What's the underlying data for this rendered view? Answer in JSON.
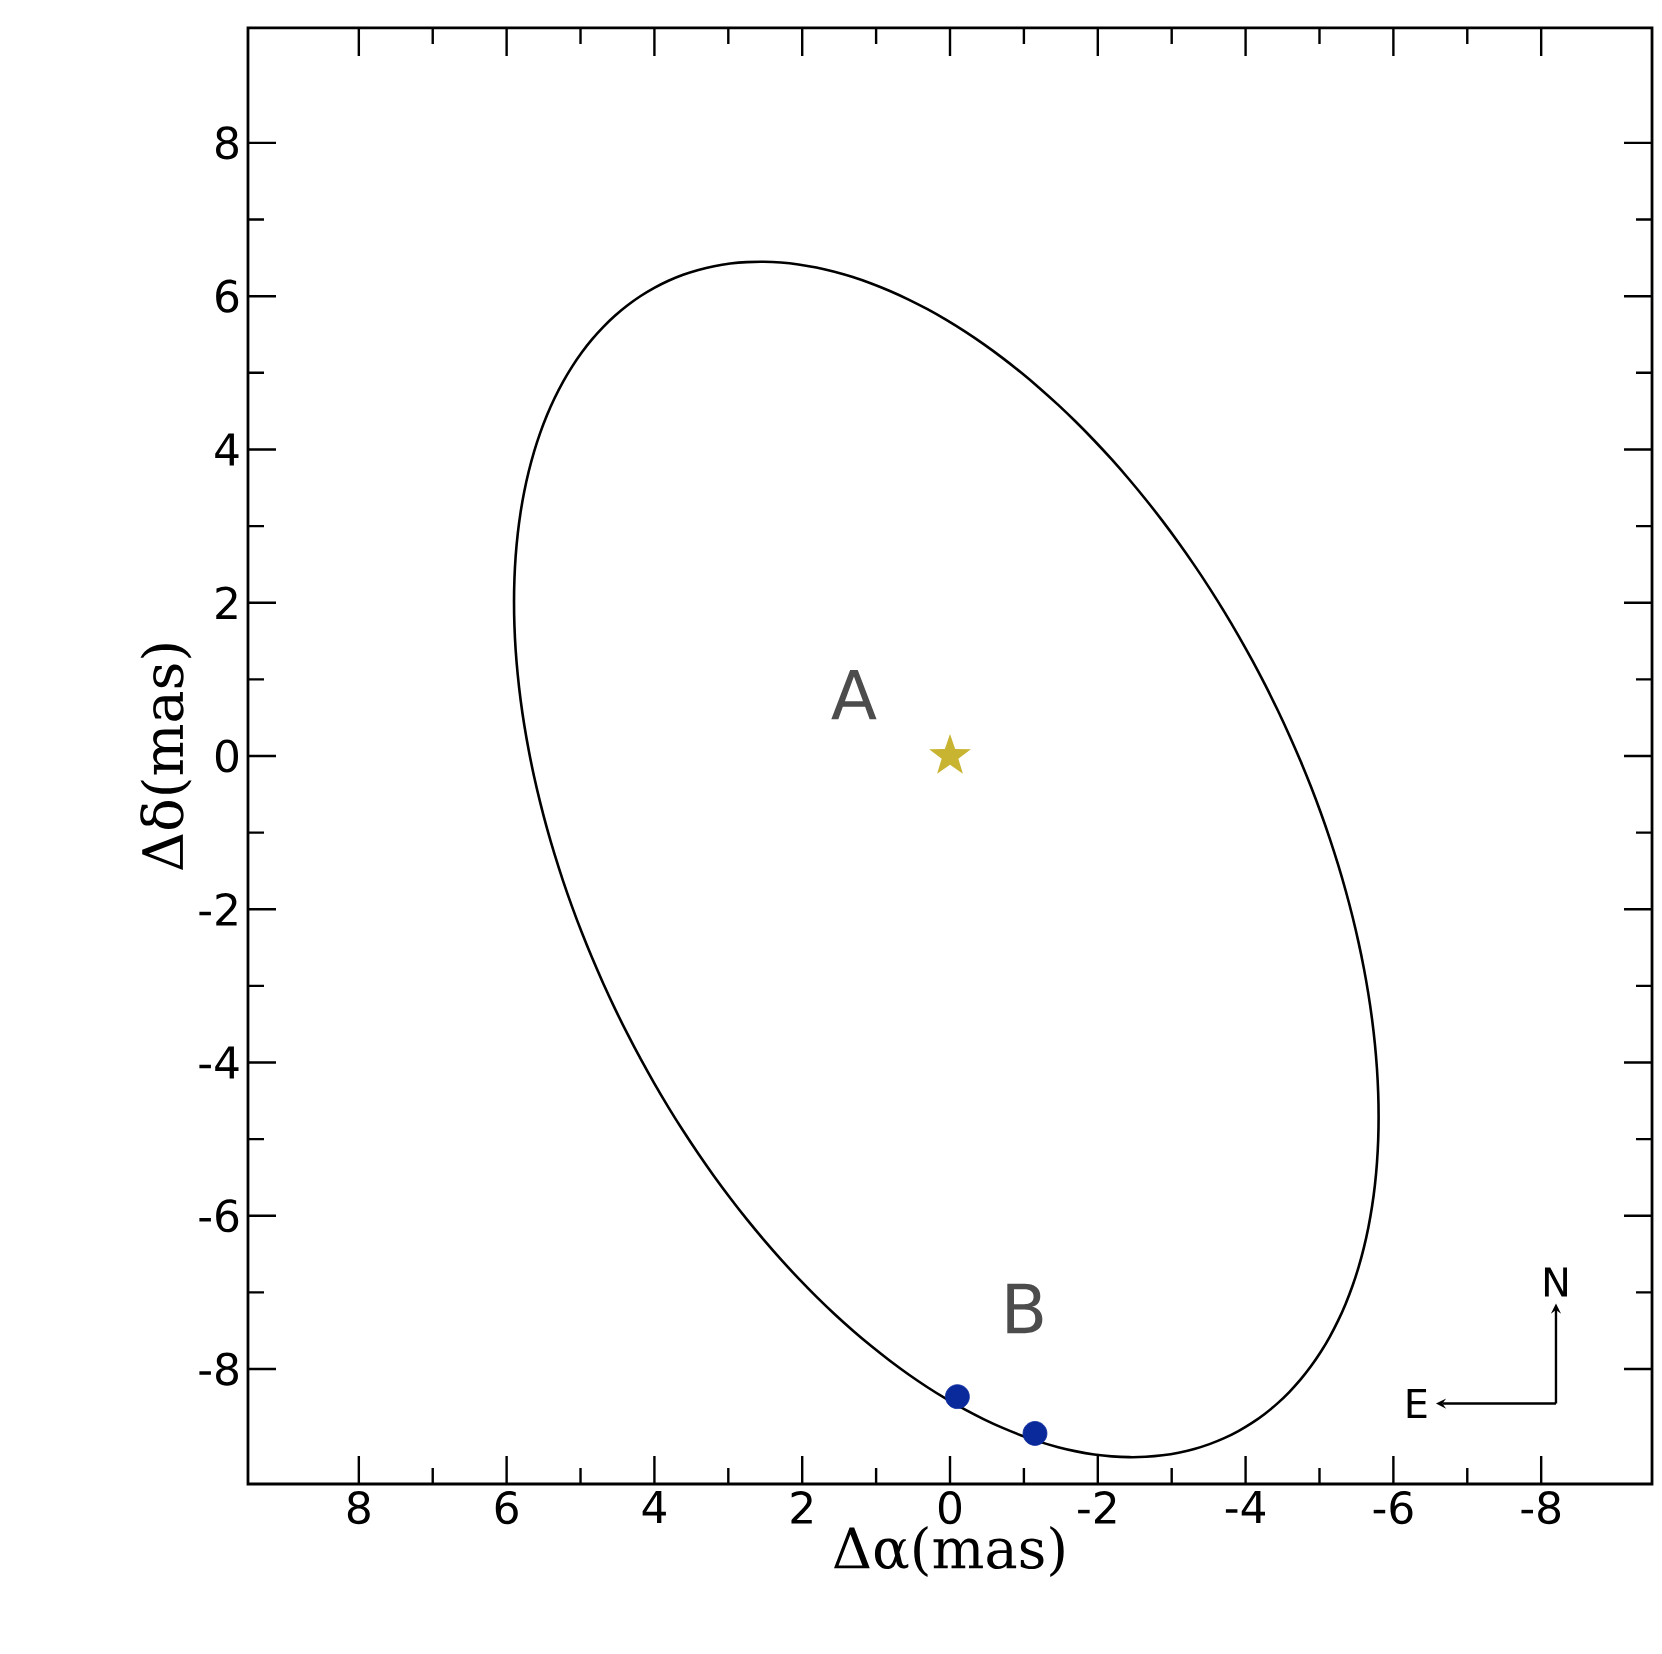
{
  "chart_data": {
    "type": "scatter",
    "xlabel": "Δα(mas)",
    "ylabel": "Δδ(mas)",
    "xlim": [
      9.5,
      -9.5
    ],
    "ylim": [
      -9.5,
      9.5
    ],
    "xticks": [
      8,
      6,
      4,
      2,
      0,
      -2,
      -4,
      -6,
      -8
    ],
    "yticks": [
      -8,
      -6,
      -4,
      -2,
      0,
      2,
      4,
      6,
      8
    ],
    "grid": false,
    "series": [
      {
        "color": "#c8b431",
        "marker": "star",
        "x": [
          0
        ],
        "values": [
          0
        ]
      },
      {
        "type": "scatter",
        "color": "#0a2a9c",
        "marker": "circle",
        "x": [
          -0.1,
          -1.15
        ],
        "values": [
          -8.36,
          -8.84
        ]
      }
    ],
    "annotations": [
      "A",
      "B",
      "N",
      "E"
    ]
  }
}
